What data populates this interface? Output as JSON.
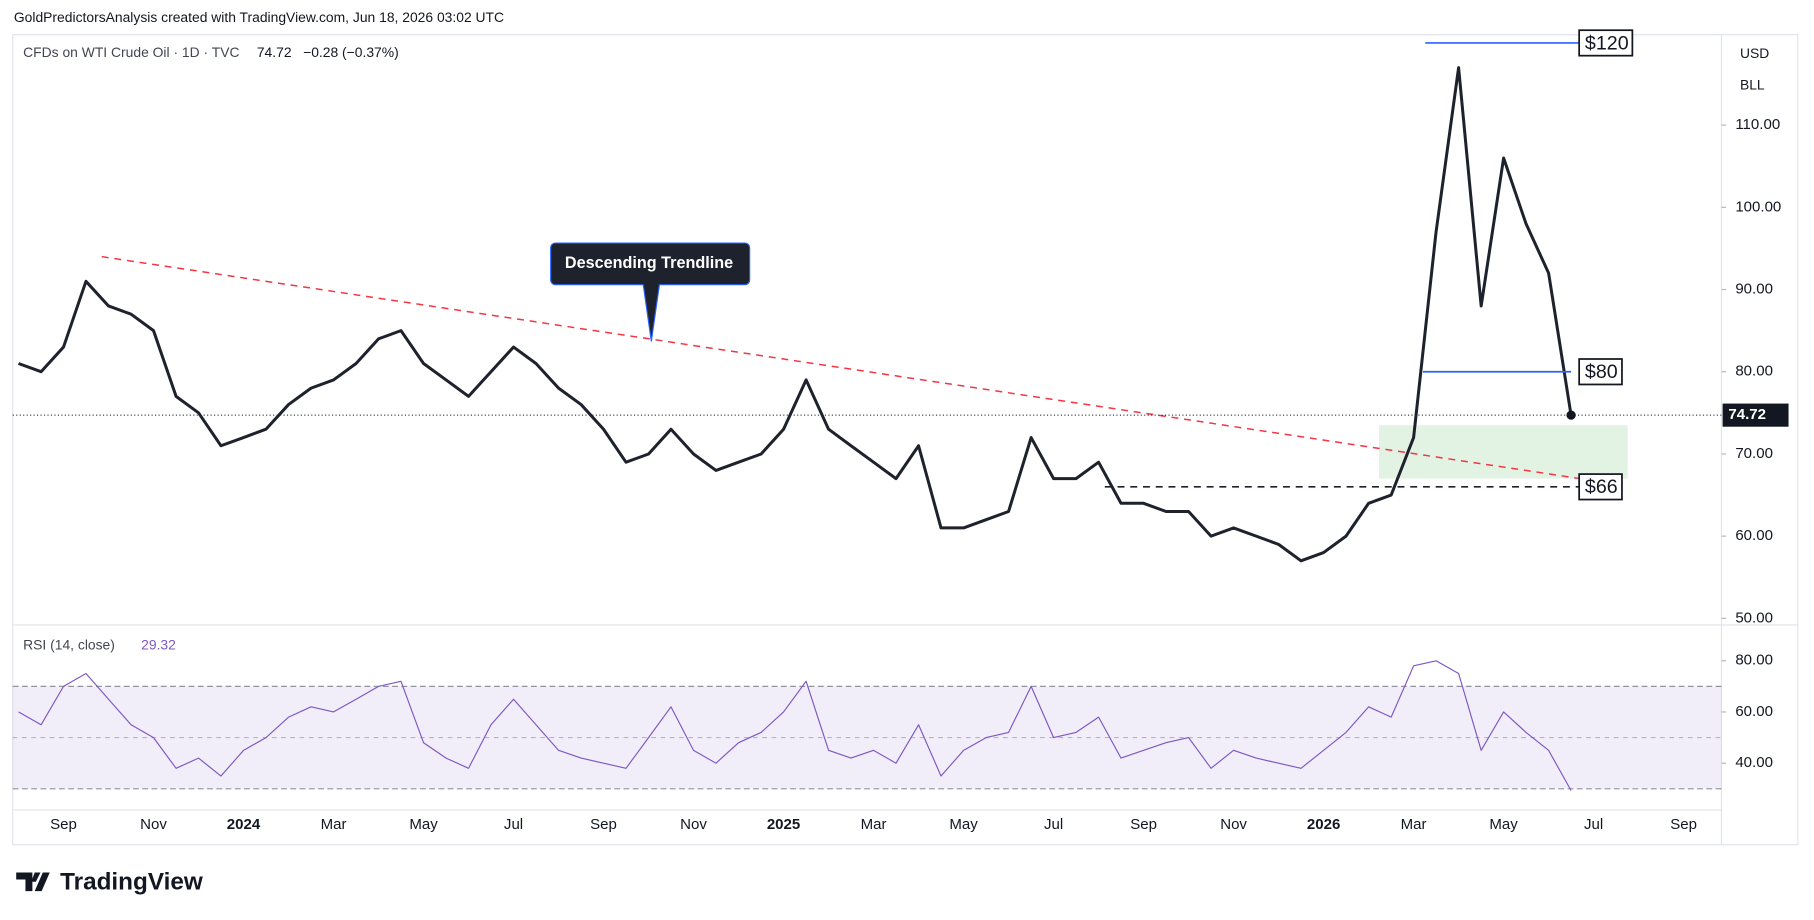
{
  "credit": "GoldPredictorsAnalysis created with TradingView.com, Jun 18, 2026 03:02 UTC",
  "logo": "TradingView",
  "chart_data": [
    {
      "type": "line",
      "title": "CFDs on WTI Crude Oil · 1D · TVC",
      "subtitle": "−0.28 (−0.37%)",
      "currency": "USD",
      "unit": "BLL",
      "categories": [
        null,
        null,
        "Sep",
        null,
        null,
        null,
        "Nov",
        null,
        null,
        null,
        "2024",
        null,
        null,
        null,
        "Mar",
        null,
        null,
        null,
        "May",
        null,
        null,
        null,
        "Jul",
        null,
        null,
        null,
        "Sep",
        null,
        null,
        null,
        "Nov",
        null,
        null,
        null,
        "2025",
        null,
        null,
        null,
        "Mar",
        null,
        null,
        null,
        "May",
        null,
        null,
        null,
        "Jul",
        null,
        null,
        null,
        "Sep",
        null,
        null,
        null,
        "Nov",
        null,
        null,
        null,
        "2026",
        null,
        null,
        null,
        "Mar",
        null,
        null,
        null,
        "May",
        null,
        null,
        null,
        "Jul",
        null,
        null,
        null,
        "Sep",
        null,
        null
      ],
      "series": [
        {
          "name": "CFDs on WTI Crude Oil",
          "color": "#1e222d",
          "values": [
            81,
            80,
            83,
            91,
            88,
            87,
            85,
            77,
            75,
            71,
            72,
            73,
            76,
            78,
            79,
            81,
            84,
            85,
            81,
            79,
            77,
            80,
            83,
            81,
            78,
            76,
            73,
            69,
            70,
            73,
            70,
            68,
            69,
            70,
            73,
            79,
            73,
            71,
            69,
            67,
            71,
            61,
            61,
            62,
            63,
            72,
            67,
            67,
            69,
            64,
            64,
            63,
            63,
            60,
            61,
            60,
            59,
            57,
            58,
            60,
            64,
            65,
            72,
            97,
            117,
            88,
            106,
            98,
            92,
            74.72,
            null,
            null,
            null,
            null,
            null,
            null,
            null
          ]
        }
      ],
      "ylim": [
        49.2,
        121
      ],
      "yticks": [
        {
          "value": 50,
          "label": "50.00"
        },
        {
          "value": 60,
          "label": "60.00"
        },
        {
          "value": 70,
          "label": "70.00"
        },
        {
          "value": 80,
          "label": "80.00"
        },
        {
          "value": 90,
          "label": "90.00"
        },
        {
          "value": 100,
          "label": "100.00"
        },
        {
          "value": 110,
          "label": "110.00"
        }
      ],
      "levels": [
        {
          "value": 120,
          "label": "$120",
          "color": "#2962ff"
        },
        {
          "value": 80,
          "label": "$80",
          "color": "#2962ff"
        },
        {
          "value": 66,
          "label": "$66",
          "color": "#1e222d"
        }
      ],
      "trendline": {
        "values": [
          94,
          67
        ],
        "color": "#f23645"
      },
      "zone": {
        "values": [
          67,
          73.5
        ],
        "color": "#e3f3e3"
      },
      "annotation": "Descending Trendline"
    },
    {
      "type": "line",
      "title": "RSI (14, close)",
      "color": "#7e57c2",
      "values": [
        60,
        55,
        70,
        75,
        65,
        55,
        50,
        38,
        42,
        35,
        45,
        50,
        58,
        62,
        60,
        65,
        70,
        72,
        48,
        42,
        38,
        55,
        65,
        55,
        45,
        42,
        40,
        38,
        50,
        62,
        45,
        40,
        48,
        52,
        60,
        72,
        45,
        42,
        45,
        40,
        55,
        35,
        45,
        50,
        52,
        70,
        50,
        52,
        58,
        42,
        45,
        48,
        50,
        38,
        45,
        42,
        40,
        38,
        45,
        52,
        62,
        58,
        78,
        80,
        75,
        45,
        60,
        52,
        45,
        29.32,
        null,
        null,
        null,
        null,
        null,
        null,
        null
      ],
      "ylim": [
        21.7,
        94
      ],
      "yticks": [
        {
          "value": 40,
          "label": "40.00"
        },
        {
          "value": 60,
          "label": "60.00"
        },
        {
          "value": 80,
          "label": "80.00"
        }
      ],
      "levels": [
        30,
        50,
        70
      ]
    }
  ]
}
